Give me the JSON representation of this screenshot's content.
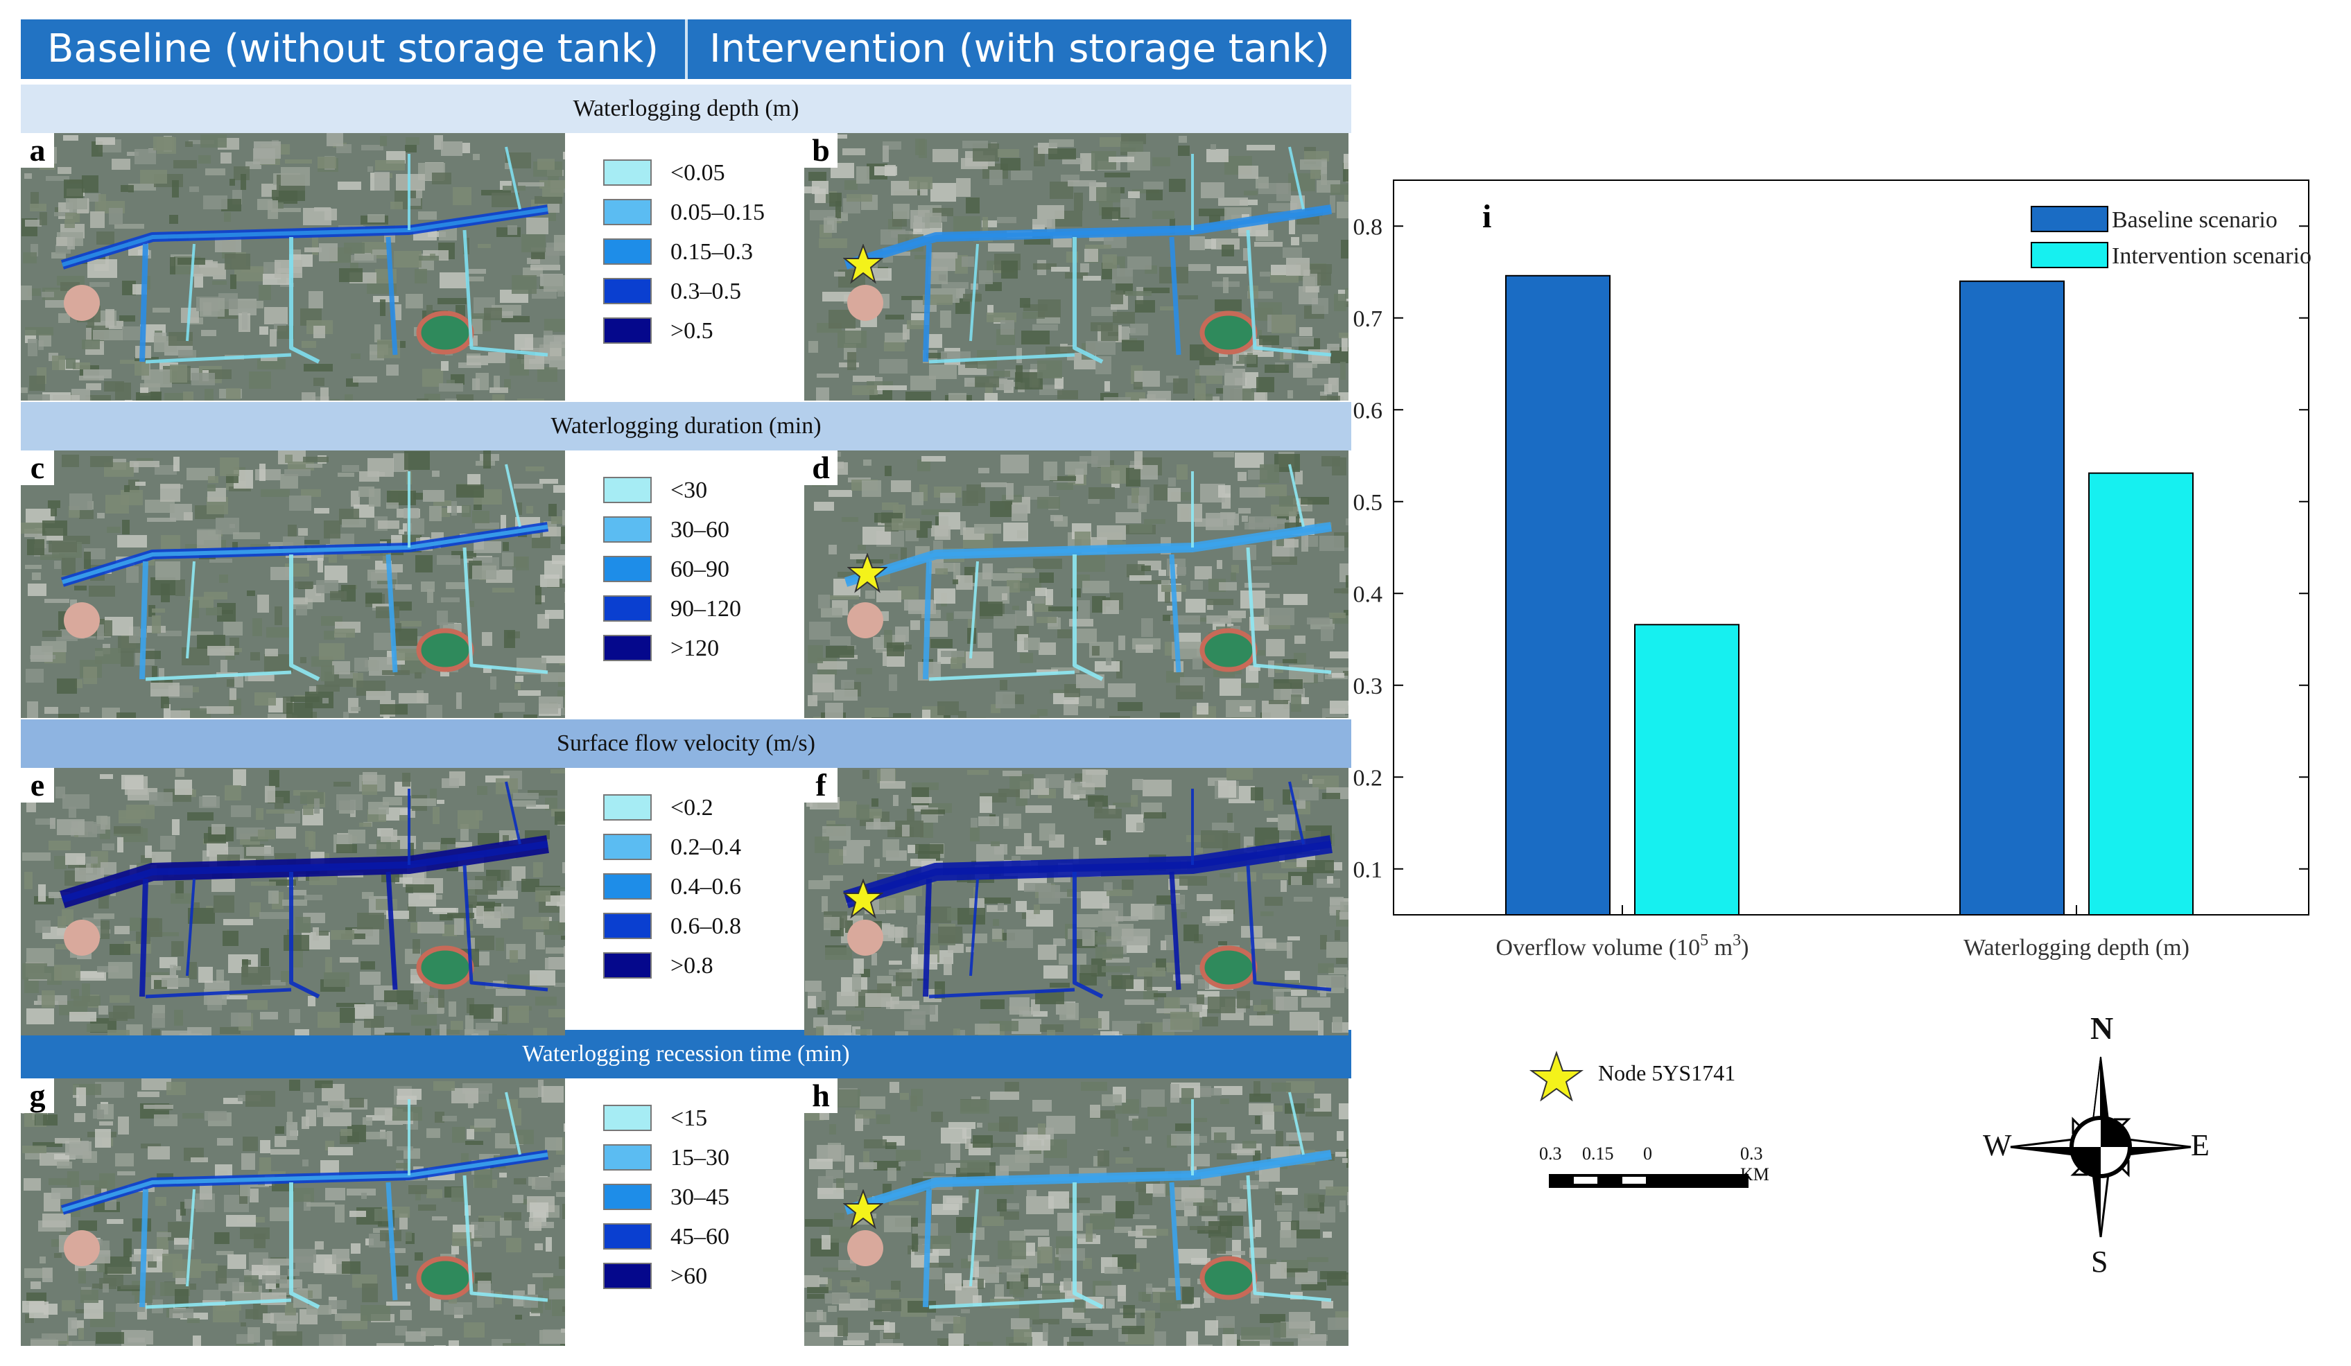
{
  "header": {
    "baseline_label": "Baseline (without storage tank)",
    "intervention_label": "Intervention (with storage tank)",
    "bg_color": "#2273c3"
  },
  "panels": [
    {
      "title": "Waterlogging depth (m)",
      "band_color": "#d8e6f5",
      "left_letter": "a",
      "right_letter": "b",
      "legend": [
        "<0.05",
        "0.05–0.15",
        "0.15–0.3",
        "0.3–0.5",
        ">0.5"
      ]
    },
    {
      "title": "Waterlogging duration (min)",
      "band_color": "#b4cfec",
      "left_letter": "c",
      "right_letter": "d",
      "legend": [
        "<30",
        "30–60",
        "60–90",
        "90–120",
        ">120"
      ]
    },
    {
      "title": "Surface flow velocity (m/s)",
      "band_color": "#8eb4e1",
      "left_letter": "e",
      "right_letter": "f",
      "legend": [
        "<0.2",
        "0.2–0.4",
        "0.4–0.6",
        "0.6–0.8",
        ">0.8"
      ]
    },
    {
      "title": "Waterlogging recession time (min)",
      "band_color": "#2273c3",
      "left_letter": "g",
      "right_letter": "h",
      "legend": [
        "<15",
        "15–30",
        "30–45",
        "45–60",
        ">60"
      ]
    }
  ],
  "legend_colors": [
    "#a6ecf4",
    "#5bbcf2",
    "#1e8de8",
    "#0a3fd0",
    "#05088c"
  ],
  "chart_data": {
    "type": "bar",
    "panel_letter": "i",
    "categories": [
      "Overflow volume (10",
      "Waterlogging depth (m)"
    ],
    "category_superscripts": [
      "5",
      ""
    ],
    "category_suffix": [
      " m",
      ""
    ],
    "category_end_superscripts": [
      "3",
      ""
    ],
    "category_close": [
      ")",
      ""
    ],
    "series": [
      {
        "name": "Baseline scenario",
        "color": "#1a6cc4",
        "values": [
          0.746,
          0.74
        ]
      },
      {
        "name": "Intervention scenario",
        "color": "#16f0f0",
        "values": [
          0.366,
          0.531
        ]
      }
    ],
    "ylim": [
      0.05,
      0.85
    ],
    "yticks": [
      "0.1",
      "0.2",
      "0.3",
      "0.4",
      "0.5",
      "0.6",
      "0.7",
      "0.8"
    ],
    "legend_position": "top-right"
  },
  "map_extras": {
    "node_label": "Node 5YS1741",
    "scale_labels": [
      "0.3",
      "0.15",
      "0",
      "0.3 KM"
    ],
    "compass": {
      "n": "N",
      "s": "S",
      "e": "E",
      "w": "W"
    }
  }
}
